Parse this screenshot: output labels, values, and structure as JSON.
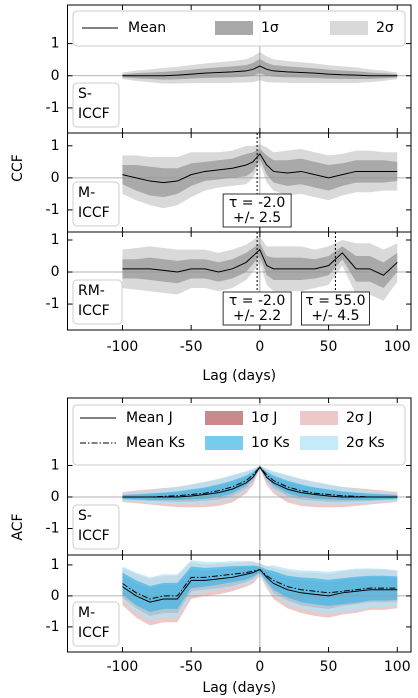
{
  "chart_data": [
    {
      "type": "line",
      "ylabel": "CCF",
      "xlabel": "Lag (days)",
      "xlim": [
        -140,
        110
      ],
      "xticks": [
        -100,
        -50,
        0,
        50,
        100
      ],
      "vline": 0,
      "hline": 0,
      "x": [
        -100,
        -90,
        -80,
        -70,
        -60,
        -50,
        -40,
        -30,
        -20,
        -10,
        -5,
        0,
        5,
        10,
        20,
        30,
        40,
        50,
        60,
        70,
        80,
        90,
        100
      ],
      "legend": [
        {
          "name": "Mean",
          "color": "#000000",
          "style": "solid"
        },
        {
          "name": "1σ",
          "color": "#a9a9a9",
          "style": "band"
        },
        {
          "name": "2σ",
          "color": "#d9d9d9",
          "style": "band"
        }
      ],
      "panels": [
        {
          "label": [
            "S-",
            "ICCF"
          ],
          "ylim": [
            -1.78,
            2.2
          ],
          "yticks": [
            -1,
            0,
            1
          ],
          "annotations": [],
          "series": [
            {
              "values": [
                0,
                0,
                0,
                0,
                0.02,
                0.05,
                0.08,
                0.1,
                0.12,
                0.15,
                0.2,
                0.3,
                0.2,
                0.15,
                0.12,
                0.1,
                0.08,
                0.05,
                0.03,
                0.02,
                0,
                0,
                0
              ]
            },
            {
              "errors": [
                0.05,
                0.08,
                0.1,
                0.12,
                0.13,
                0.14,
                0.15,
                0.16,
                0.17,
                0.18,
                0.2,
                0.22,
                0.2,
                0.18,
                0.17,
                0.16,
                0.15,
                0.14,
                0.13,
                0.12,
                0.1,
                0.08,
                0.05
              ]
            },
            {
              "errors": [
                0.1,
                0.16,
                0.2,
                0.24,
                0.26,
                0.28,
                0.3,
                0.32,
                0.34,
                0.36,
                0.4,
                0.44,
                0.4,
                0.36,
                0.34,
                0.32,
                0.3,
                0.28,
                0.26,
                0.24,
                0.2,
                0.16,
                0.1
              ]
            }
          ]
        },
        {
          "label": [
            "M-",
            "ICCF"
          ],
          "ylim": [
            -1.69,
            1.4
          ],
          "yticks": [
            -1,
            0,
            1
          ],
          "annotations": [
            {
              "x": -2.0,
              "text": [
                "τ = -2.0",
                "+/- 2.5"
              ]
            }
          ],
          "series": [
            {
              "values": [
                0.1,
                0,
                -0.1,
                -0.15,
                -0.1,
                0.1,
                0.2,
                0.25,
                0.3,
                0.4,
                0.5,
                0.75,
                0.4,
                0.2,
                0.15,
                0.2,
                0.1,
                0,
                0.1,
                0.2,
                0.2,
                0.2,
                0.2
              ]
            },
            {
              "errors": [
                0.3,
                0.4,
                0.45,
                0.45,
                0.4,
                0.35,
                0.3,
                0.3,
                0.3,
                0.35,
                0.3,
                0.15,
                0.3,
                0.35,
                0.4,
                0.4,
                0.4,
                0.4,
                0.35,
                0.35,
                0.35,
                0.35,
                0.3
              ]
            },
            {
              "errors": [
                0.6,
                0.7,
                0.75,
                0.8,
                0.75,
                0.7,
                0.6,
                0.55,
                0.55,
                0.6,
                0.5,
                0.3,
                0.55,
                0.6,
                0.7,
                0.7,
                0.7,
                0.7,
                0.65,
                0.65,
                0.65,
                0.6,
                0.6
              ]
            }
          ]
        },
        {
          "label": [
            "RM-",
            "ICCF"
          ],
          "ylim": [
            -1.81,
            1.25
          ],
          "yticks": [
            -1,
            0,
            1
          ],
          "annotations": [
            {
              "x": -2.0,
              "text": [
                "τ = -2.0",
                "+/- 2.2"
              ]
            },
            {
              "x": 55.0,
              "text": [
                "τ = 55.0",
                "+/- 4.5"
              ]
            }
          ],
          "series": [
            {
              "values": [
                0.1,
                0.1,
                0.1,
                0.05,
                0,
                0.1,
                0.1,
                0,
                0.1,
                0.3,
                0.5,
                0.7,
                0.2,
                0.1,
                0.1,
                0.1,
                0.1,
                0.2,
                0.6,
                0.1,
                0.1,
                -0.1,
                0.3
              ]
            },
            {
              "errors": [
                0.3,
                0.3,
                0.35,
                0.35,
                0.35,
                0.3,
                0.3,
                0.3,
                0.3,
                0.3,
                0.25,
                0.2,
                0.3,
                0.35,
                0.35,
                0.35,
                0.3,
                0.3,
                0.2,
                0.4,
                0.4,
                0.4,
                0.3
              ]
            },
            {
              "errors": [
                0.6,
                0.65,
                0.7,
                0.7,
                0.7,
                0.6,
                0.6,
                0.6,
                0.6,
                0.55,
                0.5,
                0.4,
                0.6,
                0.7,
                0.7,
                0.7,
                0.6,
                0.6,
                0.4,
                0.8,
                0.8,
                0.8,
                0.6
              ]
            }
          ]
        }
      ]
    },
    {
      "type": "line",
      "ylabel": "ACF",
      "xlabel": "Lag (days)",
      "xlim": [
        -140,
        110
      ],
      "xticks": [
        -100,
        -50,
        0,
        50,
        100
      ],
      "vline": 0,
      "hline": 0,
      "x": [
        -100,
        -90,
        -80,
        -70,
        -60,
        -50,
        -40,
        -30,
        -20,
        -10,
        -5,
        0,
        5,
        10,
        20,
        30,
        40,
        50,
        60,
        70,
        80,
        90,
        100
      ],
      "legend": [
        {
          "name": "Mean J",
          "color": "#000000",
          "style": "solid"
        },
        {
          "name": "1σ J",
          "color": "#b5575a",
          "style": "band"
        },
        {
          "name": "2σ J",
          "color": "#e6b0b0",
          "style": "band"
        },
        {
          "name": "Mean Ks",
          "color": "#000000",
          "style": "dashdot"
        },
        {
          "name": "1σ Ks",
          "color": "#3db5e6",
          "style": "band"
        },
        {
          "name": "2σ Ks",
          "color": "#aee2f5",
          "style": "band"
        }
      ],
      "panels": [
        {
          "label": [
            "S-",
            "ICCF"
          ],
          "ylim": [
            -1.84,
            3.14
          ],
          "yticks": [
            -1,
            0,
            1
          ],
          "annotations": [],
          "series": [
            {
              "values": [
                0,
                0,
                0,
                0,
                0,
                0.03,
                0.08,
                0.14,
                0.25,
                0.45,
                0.62,
                0.95,
                0.62,
                0.45,
                0.25,
                0.14,
                0.08,
                0.03,
                0,
                0,
                0,
                0,
                0
              ]
            },
            {
              "errors": [
                0.08,
                0.1,
                0.12,
                0.14,
                0.16,
                0.18,
                0.2,
                0.22,
                0.22,
                0.18,
                0.12,
                0.02,
                0.12,
                0.18,
                0.22,
                0.22,
                0.2,
                0.18,
                0.16,
                0.14,
                0.12,
                0.1,
                0.08
              ]
            },
            {
              "errors": [
                0.16,
                0.2,
                0.24,
                0.28,
                0.32,
                0.36,
                0.4,
                0.42,
                0.42,
                0.34,
                0.24,
                0.04,
                0.24,
                0.34,
                0.42,
                0.42,
                0.4,
                0.36,
                0.32,
                0.28,
                0.24,
                0.2,
                0.16
              ]
            },
            {
              "values": [
                0,
                0,
                0,
                0.02,
                0.04,
                0.08,
                0.12,
                0.2,
                0.32,
                0.52,
                0.7,
                0.95,
                0.7,
                0.52,
                0.32,
                0.2,
                0.12,
                0.08,
                0.04,
                0.02,
                0,
                0,
                0
              ]
            },
            {
              "errors": [
                0.06,
                0.08,
                0.1,
                0.12,
                0.14,
                0.16,
                0.18,
                0.2,
                0.2,
                0.16,
                0.1,
                0.02,
                0.1,
                0.16,
                0.2,
                0.2,
                0.18,
                0.16,
                0.14,
                0.12,
                0.1,
                0.08,
                0.06
              ]
            },
            {
              "errors": [
                0.12,
                0.16,
                0.2,
                0.24,
                0.28,
                0.32,
                0.36,
                0.38,
                0.38,
                0.3,
                0.2,
                0.04,
                0.2,
                0.3,
                0.38,
                0.38,
                0.36,
                0.32,
                0.28,
                0.24,
                0.2,
                0.16,
                0.12
              ]
            }
          ]
        },
        {
          "label": [
            "M-",
            "ICCF"
          ],
          "ylim": [
            -1.81,
            1.32
          ],
          "yticks": [
            -1,
            0,
            1
          ],
          "annotations": [],
          "series": [
            {
              "values": [
                0.3,
                0,
                -0.2,
                -0.1,
                -0.1,
                0.5,
                0.5,
                0.55,
                0.6,
                0.7,
                0.75,
                0.85,
                0.6,
                0.4,
                0.2,
                0.1,
                0.05,
                0,
                0.1,
                0.15,
                0.2,
                0.2,
                0.2
              ]
            },
            {
              "errors": [
                0.35,
                0.4,
                0.45,
                0.45,
                0.45,
                0.35,
                0.3,
                0.3,
                0.28,
                0.25,
                0.2,
                0.1,
                0.2,
                0.3,
                0.35,
                0.4,
                0.42,
                0.42,
                0.42,
                0.42,
                0.4,
                0.4,
                0.38
              ]
            },
            {
              "errors": [
                0.6,
                0.7,
                0.75,
                0.75,
                0.75,
                0.6,
                0.5,
                0.5,
                0.45,
                0.4,
                0.35,
                0.2,
                0.35,
                0.5,
                0.6,
                0.65,
                0.7,
                0.7,
                0.7,
                0.7,
                0.65,
                0.65,
                0.6
              ]
            },
            {
              "values": [
                0.4,
                0.1,
                -0.1,
                0,
                0,
                0.6,
                0.6,
                0.65,
                0.7,
                0.75,
                0.8,
                0.85,
                0.65,
                0.5,
                0.3,
                0.2,
                0.15,
                0.1,
                0.15,
                0.2,
                0.25,
                0.25,
                0.25
              ]
            },
            {
              "errors": [
                0.35,
                0.4,
                0.42,
                0.42,
                0.42,
                0.35,
                0.3,
                0.28,
                0.26,
                0.22,
                0.18,
                0.1,
                0.2,
                0.3,
                0.35,
                0.4,
                0.42,
                0.42,
                0.42,
                0.42,
                0.4,
                0.4,
                0.38
              ]
            },
            {
              "errors": [
                0.55,
                0.65,
                0.7,
                0.7,
                0.7,
                0.55,
                0.5,
                0.45,
                0.42,
                0.38,
                0.32,
                0.18,
                0.32,
                0.48,
                0.58,
                0.62,
                0.66,
                0.68,
                0.68,
                0.68,
                0.64,
                0.62,
                0.58
              ]
            }
          ]
        }
      ]
    }
  ]
}
